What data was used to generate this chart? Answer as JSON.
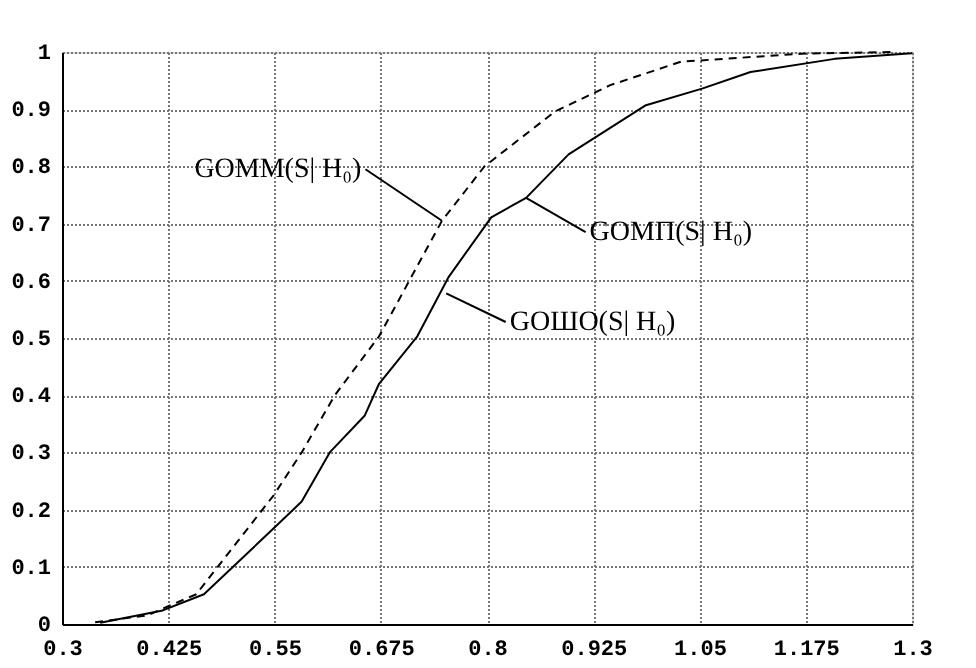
{
  "chart_data": {
    "type": "line",
    "xlim": [
      0.3,
      1.3
    ],
    "xticks": [
      0.3,
      0.425,
      0.55,
      0.675,
      0.8,
      0.925,
      1.05,
      1.175,
      1.3
    ],
    "ylim": [
      0,
      1
    ],
    "yticks": [
      0,
      0.1,
      0.2,
      0.3,
      0.4,
      0.5,
      0.6,
      0.7,
      0.8,
      0.9,
      1
    ],
    "grid": true,
    "marker": "none",
    "series": [
      {
        "color": "#000000",
        "line_style": "dashed",
        "x": [
          0.339,
          0.4,
          0.458,
          0.549,
          0.582,
          0.621,
          0.673,
          0.747,
          0.797,
          0.88,
          0.945,
          1.028,
          1.17,
          1.28
        ],
        "values": [
          0.003,
          0.015,
          0.052,
          0.225,
          0.3,
          0.4,
          0.503,
          0.705,
          0.8,
          0.896,
          0.942,
          0.983,
          0.997,
          1.0
        ]
      },
      {
        "color": "#000000",
        "line_style": "solid",
        "x": [
          0.345,
          0.417,
          0.467,
          0.541,
          0.582,
          0.615,
          0.656,
          0.673,
          0.718,
          0.755,
          0.805,
          0.846,
          0.896,
          0.987,
          1.053,
          1.11,
          1.209,
          1.3
        ],
        "values": [
          0.002,
          0.023,
          0.052,
          0.156,
          0.214,
          0.3,
          0.364,
          0.42,
          0.503,
          0.607,
          0.711,
          0.745,
          0.821,
          0.907,
          0.936,
          0.965,
          0.988,
          0.998
        ]
      }
    ],
    "annotations": [
      {
        "text": "GОММ(S| H₀)",
        "x": 0.747,
        "y": 0.705
      },
      {
        "text": "GОМП(S| H₀)",
        "x": 0.846,
        "y": 0.745
      },
      {
        "text": "GОШО(S| H₀)",
        "x": 0.752,
        "y": 0.578
      }
    ]
  }
}
